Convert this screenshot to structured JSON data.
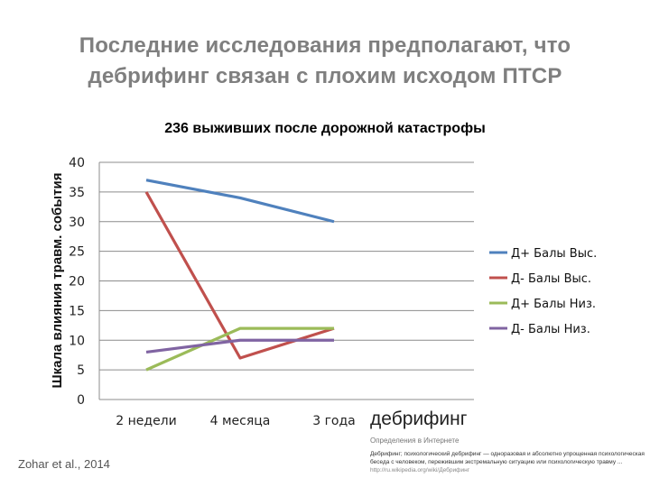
{
  "slide": {
    "title_line1": "Последние исследования предполагают, что",
    "title_line2": "дебрифинг связан с плохим исходом ПТСР",
    "citation": "Zohar et al., 2014"
  },
  "web_snippet": {
    "term": "дебрифинг",
    "subtitle": "Определения в Интернете",
    "body": "Дебрифинг; психологический дебрифинг — одноразовая и абсолютно упрощенная психологическая беседа с человеком, пережившим экстремальную ситуацию или психологическую травму ...",
    "url": "http://ru.wikipedia.org/wiki/Дебрифинг"
  },
  "chart_data": {
    "type": "line",
    "title": "236 выживших после дорожной катастрофы",
    "xlabel": "",
    "ylabel": "Шкала влияния травм. события",
    "categories": [
      "2 недели",
      "4 месяца",
      "3 года"
    ],
    "ylim": [
      0,
      40
    ],
    "yticks": [
      "0",
      "5",
      "10",
      "15",
      "20",
      "25",
      "30",
      "35",
      "40"
    ],
    "grid": true,
    "legend_position": "right",
    "series": [
      {
        "name": "Д+ Балы Выс.",
        "color": "#4f81bd",
        "values": [
          37,
          34,
          30
        ]
      },
      {
        "name": "Д- Балы Выс.",
        "color": "#c0504d",
        "values": [
          35,
          7,
          12
        ]
      },
      {
        "name": "Д+ Балы Низ.",
        "color": "#9bbb59",
        "values": [
          5,
          12,
          12
        ]
      },
      {
        "name": "Д- Балы Низ.",
        "color": "#8064a2",
        "values": [
          8,
          10,
          10
        ]
      }
    ]
  }
}
